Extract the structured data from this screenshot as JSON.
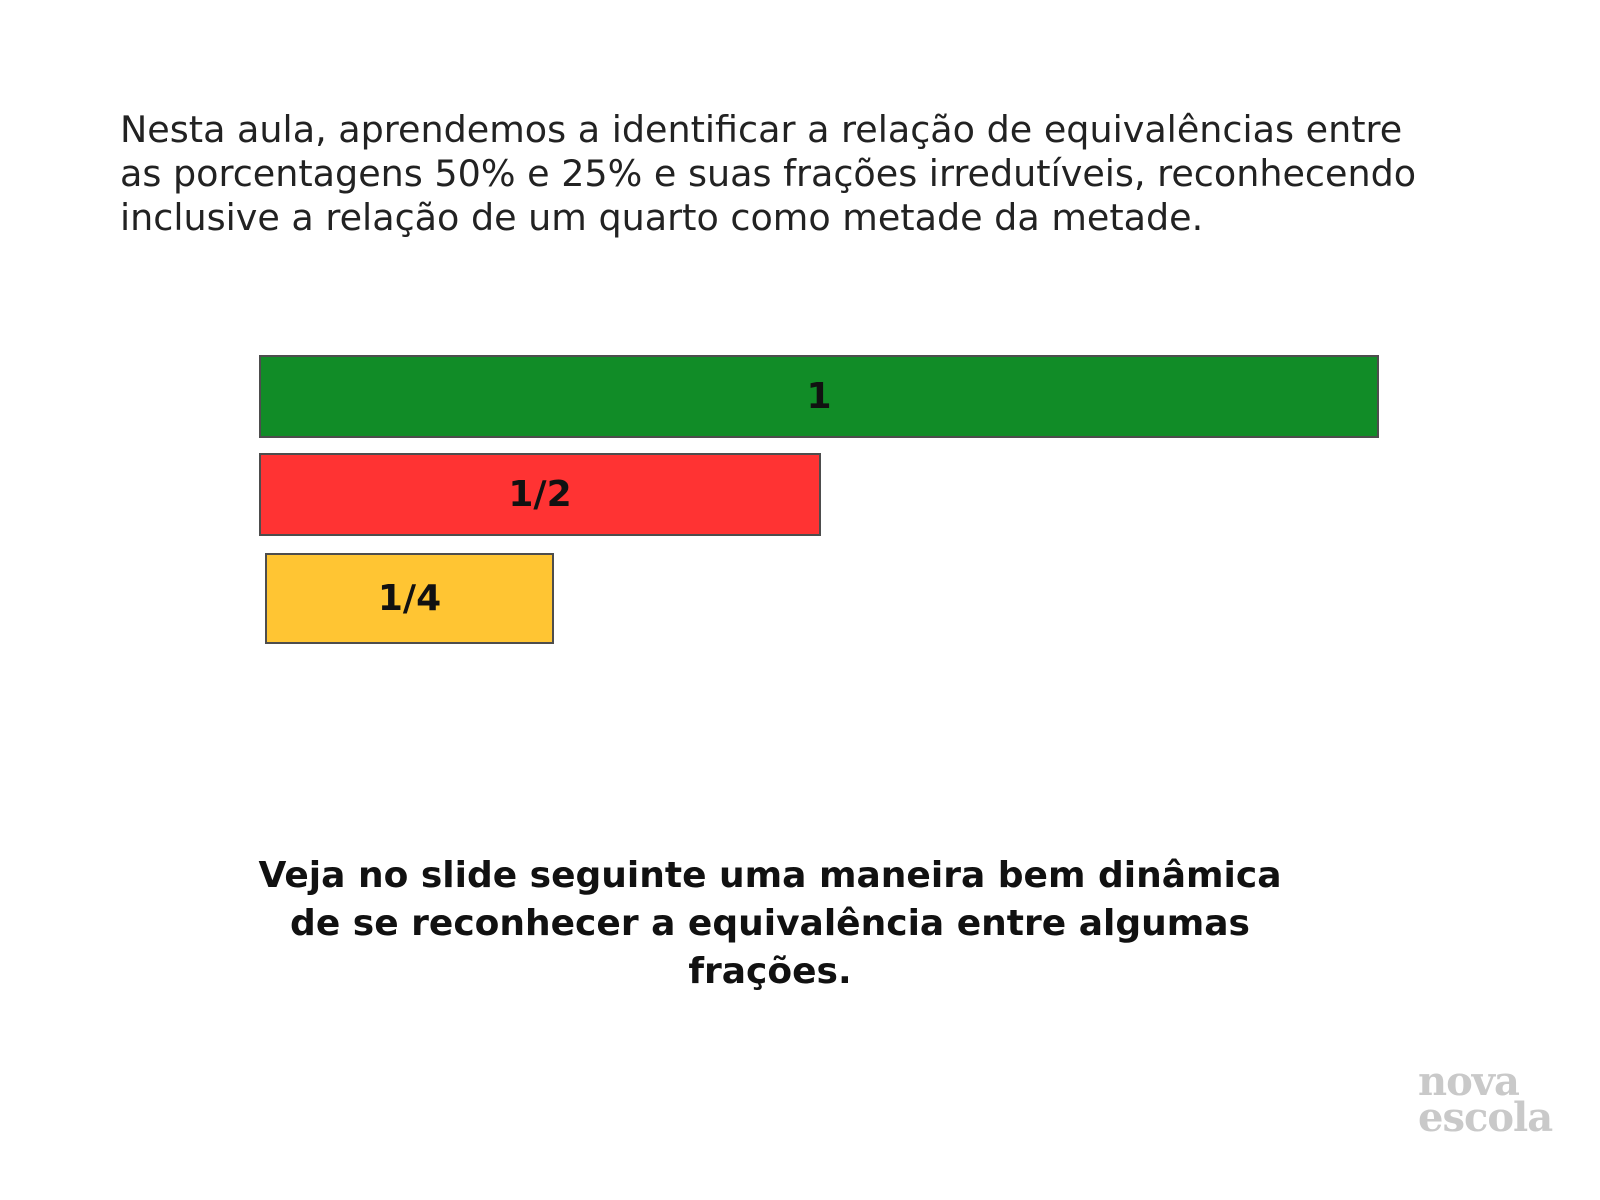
{
  "intro": {
    "lines": [
      "Nesta aula, aprendemos a identificar a relação de equivalências entre",
      "as porcentagens 50% e 25% e suas frações irredutíveis, reconhecendo",
      "inclusive a relação de um quarto como metade da metade."
    ]
  },
  "fraction_bars": [
    {
      "label": "1",
      "value": 1,
      "color": "#118c27"
    },
    {
      "label": "1/2",
      "value": 0.5,
      "color": "#ff3333"
    },
    {
      "label": "1/4",
      "value": 0.25,
      "color": "#ffc533"
    }
  ],
  "cta": {
    "lines": [
      "Veja no slide seguinte uma maneira bem dinâmica",
      "de se reconhecer a equivalência entre algumas",
      "frações."
    ]
  },
  "logo": {
    "line1": "nova",
    "line2": "escola",
    "color": "#c9c9c9"
  }
}
